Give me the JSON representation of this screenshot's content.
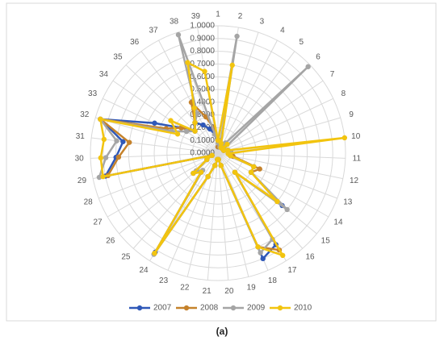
{
  "chart_data": {
    "type": "radar",
    "categories": [
      "1",
      "2",
      "3",
      "4",
      "5",
      "6",
      "7",
      "8",
      "9",
      "10",
      "11",
      "12",
      "13",
      "14",
      "15",
      "16",
      "17",
      "18",
      "19",
      "20",
      "21",
      "22",
      "23",
      "24",
      "25",
      "26",
      "27",
      "28",
      "29",
      "30",
      "31",
      "32",
      "33",
      "34",
      "35",
      "36",
      "37",
      "38",
      "39"
    ],
    "ylim": [
      0,
      1
    ],
    "yticks": [
      {
        "value": 0,
        "label": "0.0000"
      },
      {
        "value": 0.1,
        "label": "0.1000"
      },
      {
        "value": 0.2,
        "label": "0.2000"
      },
      {
        "value": 0.3,
        "label": "0.3000"
      },
      {
        "value": 0.4,
        "label": "0.4000"
      },
      {
        "value": 0.5,
        "label": "0.5000"
      },
      {
        "value": 0.6,
        "label": "0.6000"
      },
      {
        "value": 0.7,
        "label": "0.7000"
      },
      {
        "value": 0.8,
        "label": "0.8000"
      },
      {
        "value": 0.9,
        "label": "0.9000"
      },
      {
        "value": 1,
        "label": "1.0000"
      }
    ],
    "grid": true,
    "series": [
      {
        "name": "2007",
        "color": "#2f58b8",
        "values": [
          0.05,
          0.05,
          0.05,
          0.05,
          0.05,
          0.05,
          0.05,
          0.05,
          0.08,
          0.1,
          0.08,
          0.1,
          0.3,
          0.3,
          0.65,
          0.2,
          0.85,
          0.9,
          0.1,
          0.05,
          0.05,
          0.1,
          0.2,
          0.92,
          0.2,
          0.25,
          0.1,
          0.05,
          0.9,
          0.8,
          0.75,
          0.96,
          0.55,
          0.35,
          0.25,
          0.3,
          0.25,
          0.2,
          0.15
        ]
      },
      {
        "name": "2008",
        "color": "#c5822b",
        "values": [
          0.05,
          0.1,
          0.05,
          0.05,
          0.05,
          0.05,
          0.05,
          0.05,
          0.08,
          0.1,
          0.08,
          0.12,
          0.35,
          0.3,
          0.6,
          0.2,
          0.9,
          0.8,
          0.1,
          0.05,
          0.05,
          0.1,
          0.2,
          0.93,
          0.2,
          0.22,
          0.1,
          0.05,
          0.88,
          0.78,
          0.7,
          0.96,
          0.45,
          0.35,
          0.25,
          0.3,
          0.45,
          0.3,
          0.2
        ]
      },
      {
        "name": "2009",
        "color": "#a5a5a5",
        "values": [
          0.08,
          0.93,
          0.05,
          0.05,
          0.1,
          0.98,
          0.05,
          0.05,
          0.08,
          0.1,
          0.08,
          0.1,
          0.3,
          0.3,
          0.7,
          0.2,
          0.8,
          0.85,
          0.1,
          0.05,
          0.05,
          0.1,
          0.2,
          0.94,
          0.18,
          0.22,
          0.1,
          0.05,
          0.95,
          0.88,
          0.8,
          0.96,
          0.4,
          0.3,
          0.25,
          0.3,
          0.35,
          0.98,
          0.15
        ]
      },
      {
        "name": "2010",
        "color": "#f2c40f",
        "values": [
          0.1,
          0.7,
          0.08,
          0.05,
          0.05,
          0.1,
          0.05,
          0.05,
          0.08,
          1,
          0.08,
          0.1,
          0.3,
          0.3,
          0.6,
          0.2,
          0.95,
          0.8,
          0.1,
          0.05,
          0.05,
          0.1,
          0.2,
          0.93,
          0.2,
          0.25,
          0.1,
          0.05,
          0.92,
          0.92,
          0.9,
          0.96,
          0.35,
          0.45,
          0.25,
          0.3,
          0.4,
          0.75,
          0.65
        ]
      }
    ]
  },
  "caption": "(a)"
}
